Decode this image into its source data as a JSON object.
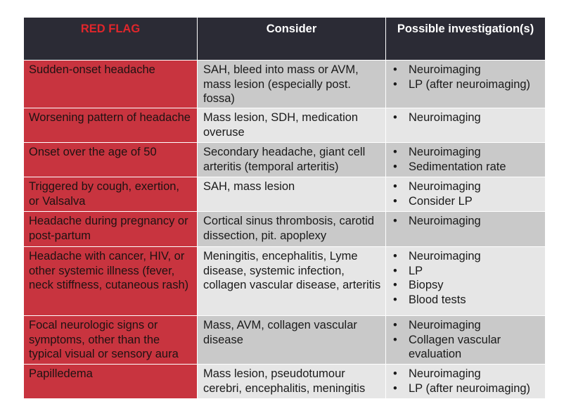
{
  "headers": {
    "flag": "RED FLAG",
    "consider": "Consider",
    "investigation": "Possible investigation(s)"
  },
  "rows": [
    {
      "flag": "Sudden-onset headache",
      "consider": "SAH, bleed into mass or AVM, mass lesion (especially post. fossa)",
      "investigations": [
        "Neuroimaging",
        "LP (after neuroimaging)"
      ]
    },
    {
      "flag": "Worsening pattern of headache",
      "consider": "Mass lesion, SDH, medication overuse",
      "investigations": [
        "Neuroimaging"
      ]
    },
    {
      "flag": "Onset over the age of 50",
      "consider": "Secondary headache, giant cell arteritis (temporal arteritis)",
      "investigations": [
        "Neuroimaging",
        "Sedimentation rate"
      ]
    },
    {
      "flag": "Triggered by cough, exertion, or Valsalva",
      "consider": "SAH, mass lesion",
      "investigations": [
        "Neuroimaging",
        "Consider LP"
      ]
    },
    {
      "flag": "Headache during pregnancy or post-partum",
      "consider": "Cortical sinus thrombosis, carotid dissection, pit. apoplexy",
      "investigations": [
        "Neuroimaging"
      ]
    },
    {
      "flag": "Headache with cancer, HIV, or other systemic illness (fever, neck stiffness, cutaneous rash)",
      "consider": "Meningitis, encephalitis, Lyme disease, systemic infection, collagen vascular disease, arteritis",
      "investigations": [
        "Neuroimaging",
        "LP",
        "Biopsy",
        "Blood tests"
      ]
    },
    {
      "flag": "Focal neurologic signs or symptoms, other than the typical visual or sensory aura",
      "consider": "Mass, AVM, collagen vascular disease",
      "investigations": [
        "Neuroimaging",
        "Collagen vascular evaluation"
      ]
    },
    {
      "flag": "Papilledema",
      "consider": "Mass lesion, pseudotumour cerebri, encephalitis, meningitis",
      "investigations": [
        "Neuroimaging",
        "LP (after neuroimaging)"
      ]
    }
  ],
  "colors": {
    "header_bg": "#2b2b35",
    "header_flag_text": "#e0262b",
    "flag_column_bg": "#c8343f",
    "row_dark": "#c9c9c9",
    "row_light": "#e6e6e6"
  }
}
